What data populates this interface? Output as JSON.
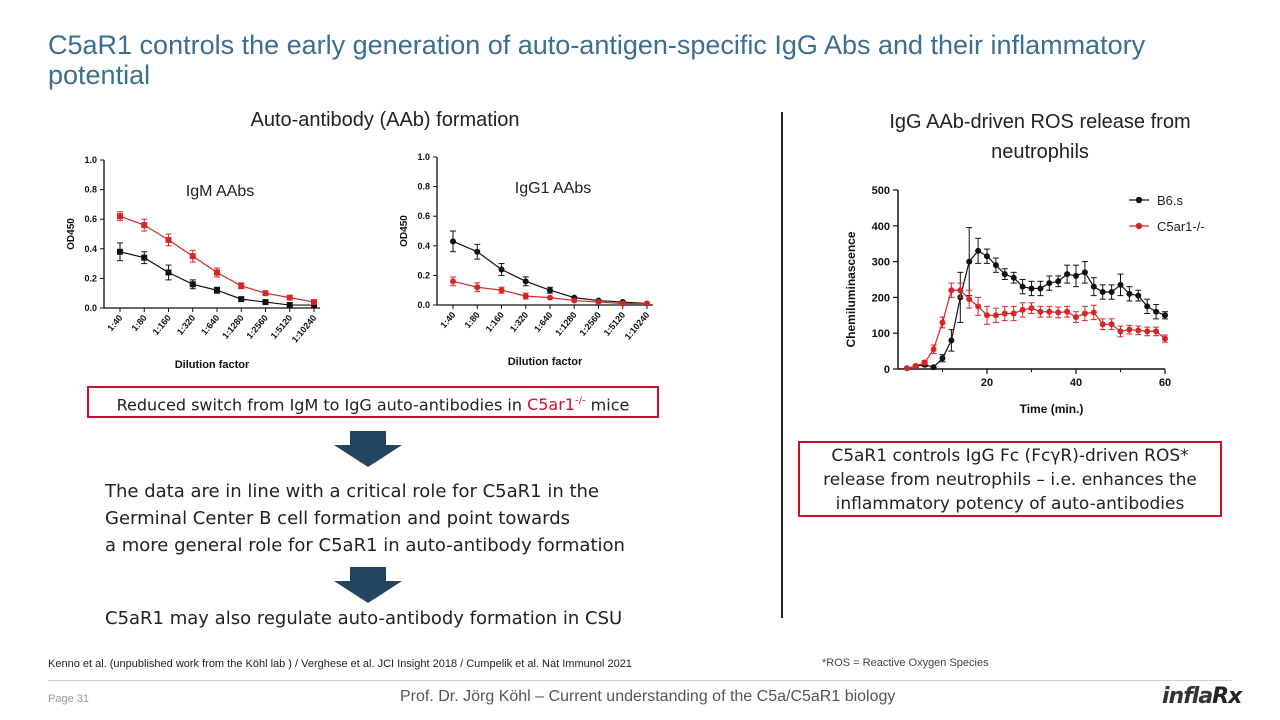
{
  "slide": {
    "title": "C5aR1 controls the early generation of auto-antigen-specific IgG Abs and their inflammatory potential",
    "left_heading": "Auto-antibody (AAb) formation",
    "right_heading": "IgG AAb-driven ROS release from neutrophils",
    "left_box": {
      "before": "Reduced switch from IgM to IgG auto-antibodies in ",
      "gene": "C5ar1",
      "sup": "-/-",
      "after": " mice"
    },
    "conclusion_1": [
      "The data are in line with a critical role for C5aR1 in the",
      "Germinal Center B cell formation and point towards",
      "a more general role for C5aR1 in auto-antibody formation"
    ],
    "conclusion_2": "C5aR1 may also regulate auto-antibody formation in CSU",
    "right_box": [
      "C5aR1 controls IgG Fc (FcγR)-driven ROS*",
      "release from neutrophils – i.e. enhances the",
      "inflammatory potency of auto-antibodies"
    ],
    "references": "Kenno et al. (unpublished  work from the Köhl lab ) / Verghese et al. JCI Insight 2018 / Cumpelik et al. Nat Immunol 2021",
    "footnote": "*ROS = Reactive Oxygen Species",
    "page_number": "Page 31",
    "footer": "Prof. Dr. Jörg Köhl – Current understanding of the C5a/C5aR1 biology",
    "logo": {
      "part1": "infla",
      "part2": "Rx"
    },
    "colors": {
      "title": "#3b6e8f",
      "accent_red": "#c8102e",
      "arrow": "#24455f"
    }
  },
  "chart_data": [
    {
      "type": "line",
      "annotation": "IgM AAbs",
      "xlabel": "Dilution factor",
      "ylabel": "OD450",
      "categories": [
        "1:40",
        "1:80",
        "1:160",
        "1:320",
        "1:640",
        "1:1280",
        "1:2560",
        "1:5120",
        "1:10240"
      ],
      "ylim": [
        0,
        1.0
      ],
      "yticks": [
        "0.0",
        "0.2",
        "0.4",
        "0.6",
        "0.8",
        "1.0"
      ],
      "series": [
        {
          "color": "#111111",
          "marker": "square",
          "values": [
            0.38,
            0.34,
            0.24,
            0.16,
            0.12,
            0.06,
            0.04,
            0.02,
            0.02
          ],
          "errors": [
            0.06,
            0.04,
            0.05,
            0.03,
            0.02,
            0.01,
            0.01,
            0.01,
            0.01
          ]
        },
        {
          "color": "#d62728",
          "marker": "square",
          "values": [
            0.62,
            0.56,
            0.46,
            0.35,
            0.24,
            0.15,
            0.1,
            0.07,
            0.04
          ],
          "errors": [
            0.03,
            0.04,
            0.04,
            0.04,
            0.03,
            0.02,
            0.01,
            0.01,
            0.01
          ]
        }
      ]
    },
    {
      "type": "line",
      "annotation": "IgG1 AAbs",
      "xlabel": "Dilution factor",
      "ylabel": "OD450",
      "categories": [
        "1:40",
        "1:80",
        "1:160",
        "1:320",
        "1:640",
        "1:1280",
        "1:2560",
        "1:5120",
        "1:10240"
      ],
      "ylim": [
        0,
        1.0
      ],
      "yticks": [
        "0.0",
        "0.2",
        "0.4",
        "0.6",
        "0.8",
        "1.0"
      ],
      "series": [
        {
          "color": "#111111",
          "marker": "circle",
          "values": [
            0.43,
            0.36,
            0.24,
            0.16,
            0.1,
            0.05,
            0.03,
            0.02,
            0.01
          ],
          "errors": [
            0.07,
            0.05,
            0.04,
            0.03,
            0.02,
            0.01,
            0.01,
            0.01,
            0.01
          ]
        },
        {
          "color": "#d62728",
          "marker": "circle",
          "values": [
            0.16,
            0.12,
            0.1,
            0.06,
            0.05,
            0.03,
            0.02,
            0.01,
            0.01
          ],
          "errors": [
            0.03,
            0.03,
            0.02,
            0.02,
            0.01,
            0.01,
            0.01,
            0.01,
            0.01
          ]
        }
      ]
    },
    {
      "type": "line",
      "xlabel": "Time (min.)",
      "ylabel": "Chemiluminascence",
      "xlim": [
        0,
        60
      ],
      "ylim": [
        0,
        500
      ],
      "xticks": [
        20,
        40,
        60
      ],
      "yticks": [
        0,
        100,
        200,
        300,
        400,
        500
      ],
      "legend": "top-right",
      "series": [
        {
          "name": "B6.s",
          "color": "#111111",
          "x": [
            2,
            4,
            6,
            8,
            10,
            12,
            14,
            16,
            18,
            20,
            22,
            24,
            26,
            28,
            30,
            32,
            34,
            36,
            38,
            40,
            42,
            44,
            46,
            48,
            50,
            52,
            54,
            56,
            58,
            60
          ],
          "y": [
            2,
            8,
            12,
            5,
            30,
            80,
            200,
            300,
            330,
            315,
            290,
            265,
            255,
            230,
            225,
            225,
            240,
            245,
            265,
            260,
            270,
            230,
            215,
            215,
            235,
            210,
            205,
            175,
            160,
            150
          ],
          "err": [
            2,
            4,
            5,
            3,
            10,
            30,
            70,
            95,
            35,
            20,
            20,
            15,
            15,
            20,
            20,
            20,
            20,
            15,
            25,
            30,
            30,
            25,
            20,
            20,
            30,
            20,
            15,
            20,
            20,
            10
          ]
        },
        {
          "name": "C5ar1-/-",
          "color": "#d62728",
          "x": [
            2,
            4,
            6,
            8,
            10,
            12,
            14,
            16,
            18,
            20,
            22,
            24,
            26,
            28,
            30,
            32,
            34,
            36,
            38,
            40,
            42,
            44,
            46,
            48,
            50,
            52,
            54,
            56,
            58,
            60
          ],
          "y": [
            2,
            8,
            18,
            55,
            130,
            220,
            220,
            195,
            175,
            150,
            150,
            155,
            155,
            165,
            170,
            160,
            160,
            158,
            160,
            145,
            155,
            158,
            125,
            125,
            105,
            110,
            108,
            105,
            105,
            85
          ],
          "err": [
            2,
            4,
            6,
            12,
            15,
            20,
            20,
            25,
            25,
            25,
            20,
            20,
            20,
            20,
            15,
            15,
            15,
            15,
            15,
            15,
            20,
            20,
            15,
            15,
            15,
            12,
            12,
            12,
            12,
            10
          ]
        }
      ]
    }
  ]
}
